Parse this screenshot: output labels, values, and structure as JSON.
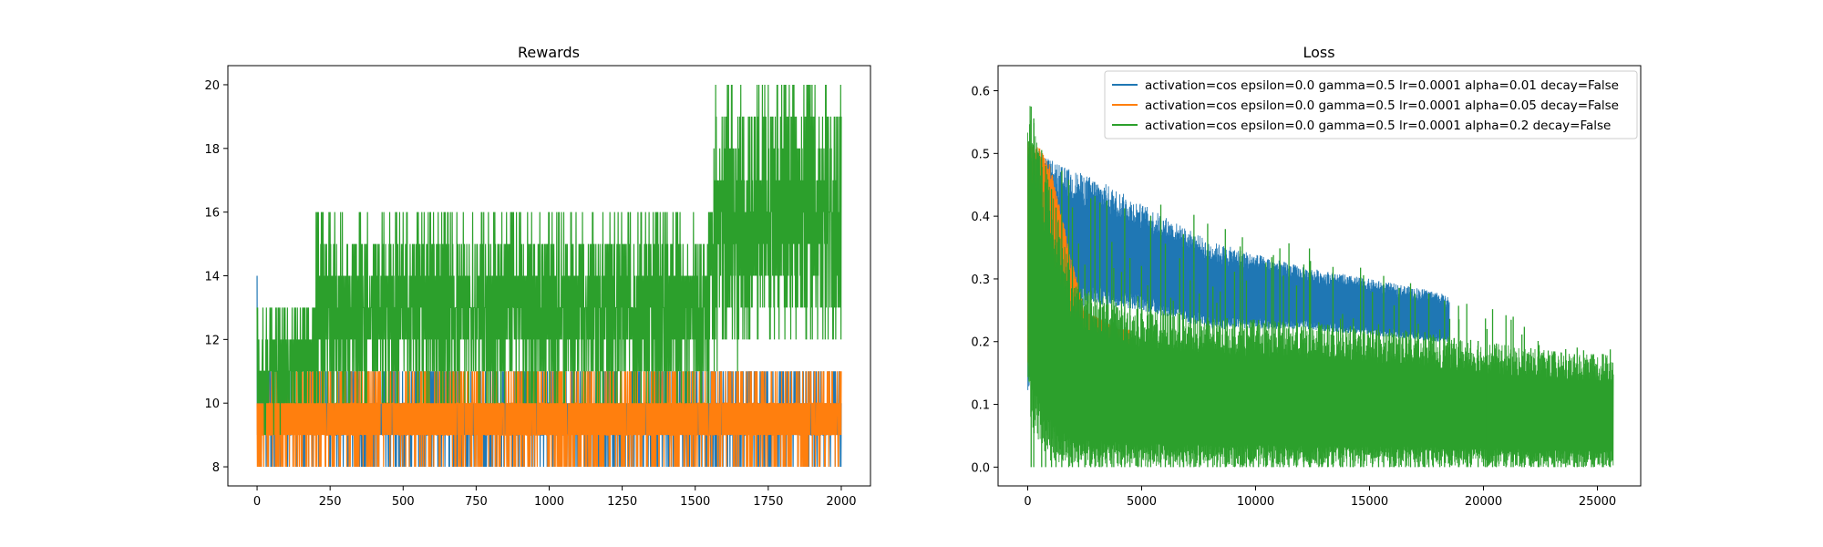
{
  "chart_data": [
    {
      "type": "line",
      "title": "Rewards",
      "xlabel": "",
      "ylabel": "",
      "xlim": [
        -100,
        2100
      ],
      "ylim": [
        7.4,
        20.6
      ],
      "xticks": [
        0,
        250,
        500,
        750,
        1000,
        1250,
        1500,
        1750,
        2000
      ],
      "xtick_labels": [
        "0",
        "250",
        "500",
        "750",
        "1000",
        "1250",
        "1500",
        "1750",
        "2000"
      ],
      "yticks": [
        8,
        10,
        12,
        14,
        16,
        18,
        20
      ],
      "ytick_labels": [
        "8",
        "10",
        "12",
        "14",
        "16",
        "18",
        "20"
      ],
      "grid": false,
      "legend": null,
      "series": [
        {
          "color": "#1f77b4",
          "x_range": [
            0,
            2000
          ],
          "segments": [
            {
              "x": [
                0,
                5
              ],
              "min": [
                8,
                8
              ],
              "max": [
                15,
                11
              ]
            },
            {
              "x": [
                5,
                2000
              ],
              "min": [
                8,
                8
              ],
              "max": [
                11,
                11
              ]
            }
          ]
        },
        {
          "color": "#ff7f0e",
          "x_range": [
            0,
            2000
          ],
          "segments": [
            {
              "x": [
                0,
                2000
              ],
              "min": [
                8,
                8
              ],
              "max": [
                11,
                11
              ]
            }
          ]
        },
        {
          "color": "#2ca02c",
          "x_range": [
            0,
            2000
          ],
          "segments": [
            {
              "x": [
                0,
                200
              ],
              "min": [
                9,
                10
              ],
              "max": [
                13,
                13
              ]
            },
            {
              "x": [
                200,
                1550
              ],
              "min": [
                10,
                10
              ],
              "max": [
                16,
                16
              ]
            },
            {
              "x": [
                1550,
                2000
              ],
              "min": [
                11,
                12
              ],
              "max": [
                20,
                20
              ]
            }
          ]
        }
      ]
    },
    {
      "type": "line",
      "title": "Loss",
      "xlabel": "",
      "ylabel": "",
      "xlim": [
        -1300,
        26900
      ],
      "ylim": [
        -0.03,
        0.64
      ],
      "xticks": [
        0,
        5000,
        10000,
        15000,
        20000,
        25000
      ],
      "xtick_labels": [
        "0",
        "5000",
        "10000",
        "15000",
        "20000",
        "25000"
      ],
      "yticks": [
        0.0,
        0.1,
        0.2,
        0.3,
        0.4,
        0.5,
        0.6
      ],
      "ytick_labels": [
        "0.0",
        "0.1",
        "0.2",
        "0.3",
        "0.4",
        "0.5",
        "0.6"
      ],
      "grid": false,
      "legend": "top-right",
      "series": [
        {
          "name": "activation=cos epsilon=0.0 gamma=0.5 lr=0.0001 alpha=0.01 decay=False",
          "color": "#1f77b4",
          "x_range": [
            0,
            18500
          ],
          "envelope": {
            "x": [
              0,
              500,
              1500,
              3000,
              5000,
              8000,
              12000,
              15000,
              18000,
              18500
            ],
            "upper": [
              0.5,
              0.5,
              0.48,
              0.46,
              0.42,
              0.36,
              0.32,
              0.3,
              0.28,
              0.27
            ],
            "lower": [
              0.12,
              0.2,
              0.25,
              0.26,
              0.25,
              0.22,
              0.22,
              0.21,
              0.2,
              0.2
            ]
          }
        },
        {
          "name": "activation=cos epsilon=0.0 gamma=0.5 lr=0.0001 alpha=0.05 decay=False",
          "color": "#ff7f0e",
          "x_range": [
            0,
            4500
          ],
          "envelope": {
            "x": [
              0,
              500,
              1000,
              1500,
              2000,
              2500,
              3000,
              3500,
              4000,
              4500
            ],
            "upper": [
              0.52,
              0.51,
              0.48,
              0.4,
              0.32,
              0.25,
              0.24,
              0.23,
              0.22,
              0.22
            ],
            "lower": [
              0.15,
              0.3,
              0.25,
              0.2,
              0.15,
              0.12,
              0.16,
              0.18,
              0.19,
              0.19
            ]
          }
        },
        {
          "name": "activation=cos epsilon=0.0 gamma=0.5 lr=0.0001 alpha=0.2 decay=False",
          "color": "#2ca02c",
          "x_range": [
            0,
            25700
          ],
          "envelope": {
            "x": [
              0,
              300,
              1000,
              2000,
              4000,
              8000,
              12000,
              16000,
              20000,
              24000,
              25700
            ],
            "upper": [
              0.6,
              0.55,
              0.45,
              0.3,
              0.26,
              0.24,
              0.23,
              0.22,
              0.2,
              0.18,
              0.18
            ],
            "lower": [
              0.1,
              0.05,
              0.01,
              0.0,
              0.0,
              0.0,
              0.0,
              0.0,
              0.0,
              0.0,
              0.0
            ]
          },
          "spikes_upper": 0.5,
          "spike_count": 110
        }
      ]
    }
  ]
}
